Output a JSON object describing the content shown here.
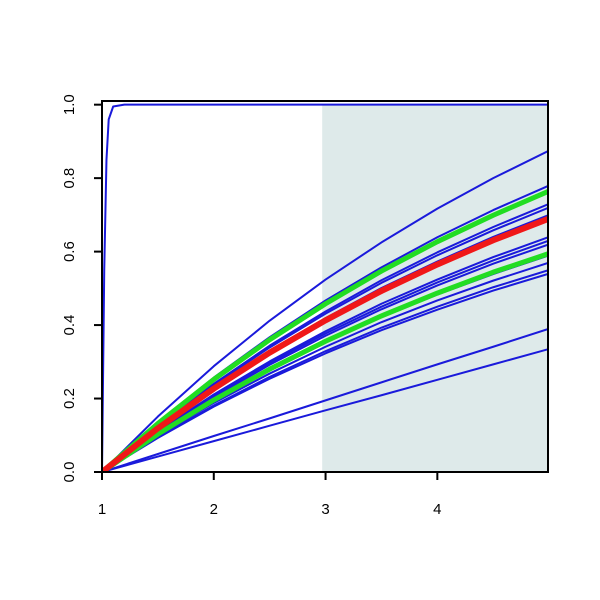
{
  "chart_data": {
    "type": "line",
    "xlim": [
      1,
      4.99
    ],
    "ylim": [
      0,
      1.01
    ],
    "xticks": [
      1,
      2,
      3,
      4
    ],
    "yticks": [
      {
        "value": 0,
        "label": "0.0"
      },
      {
        "value": 0.2,
        "label": "0.2"
      },
      {
        "value": 0.4,
        "label": "0.4"
      },
      {
        "value": 0.6,
        "label": "0.6"
      },
      {
        "value": 0.8,
        "label": "0.8"
      },
      {
        "value": 1,
        "label": "1.0"
      }
    ],
    "shade": {
      "x": [
        2.97,
        4.99
      ],
      "y": [
        0,
        1
      ],
      "color": "#deeaea"
    },
    "x": [
      1,
      1.5,
      2,
      2.5,
      3,
      3.5,
      4,
      4.5,
      5
    ],
    "series": [
      {
        "color": "#1a1adb",
        "width": 2,
        "values": [
          0,
          0.151,
          0.288,
          0.412,
          0.524,
          0.625,
          0.717,
          0.8,
          0.875
        ]
      },
      {
        "color": "#1a1adb",
        "width": 2,
        "values": [
          0,
          0.135,
          0.257,
          0.367,
          0.467,
          0.557,
          0.639,
          0.713,
          0.78
        ]
      },
      {
        "color": "#1a1adb",
        "width": 2,
        "values": [
          0,
          0.126,
          0.24,
          0.344,
          0.437,
          0.522,
          0.598,
          0.667,
          0.73
        ]
      },
      {
        "color": "#1a1adb",
        "width": 2,
        "values": [
          0,
          0.125,
          0.237,
          0.339,
          0.431,
          0.515,
          0.59,
          0.658,
          0.72
        ]
      },
      {
        "color": "#1a1adb",
        "width": 2,
        "values": [
          0,
          0.121,
          0.23,
          0.33,
          0.419,
          0.501,
          0.573,
          0.64,
          0.7
        ]
      },
      {
        "color": "#1a1adb",
        "width": 2,
        "values": [
          0,
          0.111,
          0.211,
          0.301,
          0.383,
          0.458,
          0.524,
          0.585,
          0.64
        ]
      },
      {
        "color": "#1a1adb",
        "width": 2,
        "values": [
          0,
          0.109,
          0.207,
          0.297,
          0.377,
          0.45,
          0.516,
          0.576,
          0.63
        ]
      },
      {
        "color": "#1a1adb",
        "width": 2,
        "values": [
          0,
          0.107,
          0.204,
          0.292,
          0.371,
          0.443,
          0.508,
          0.567,
          0.62
        ]
      },
      {
        "color": "#1a1adb",
        "width": 2,
        "values": [
          0,
          0.102,
          0.194,
          0.278,
          0.353,
          0.422,
          0.483,
          0.539,
          0.59
        ]
      },
      {
        "color": "#1a1adb",
        "width": 2,
        "values": [
          0,
          0.099,
          0.188,
          0.268,
          0.341,
          0.408,
          0.467,
          0.521,
          0.57
        ]
      },
      {
        "color": "#1a1adb",
        "width": 2,
        "values": [
          0,
          0.095,
          0.181,
          0.259,
          0.329,
          0.393,
          0.45,
          0.503,
          0.55
        ]
      },
      {
        "color": "#1a1adb",
        "width": 2,
        "values": [
          0,
          0.093,
          0.178,
          0.254,
          0.323,
          0.386,
          0.442,
          0.494,
          0.54
        ]
      },
      {
        "color": "#1a1adb",
        "width": 2,
        "values": [
          0,
          0.049,
          0.098,
          0.146,
          0.195,
          0.244,
          0.293,
          0.341,
          0.39
        ]
      },
      {
        "color": "#1a1adb",
        "width": 2,
        "values": [
          0,
          0.042,
          0.084,
          0.126,
          0.168,
          0.209,
          0.251,
          0.293,
          0.335
        ]
      },
      {
        "color": "#1a1adb",
        "width": 2,
        "x": [
          1,
          1.02,
          1.04,
          1.06,
          1.1,
          1.2,
          5
        ],
        "values": [
          0,
          0.55,
          0.85,
          0.96,
          0.995,
          1,
          1
        ]
      },
      {
        "color": "#22dd22",
        "width": 5,
        "values": [
          0,
          0.132,
          0.252,
          0.36,
          0.458,
          0.547,
          0.627,
          0.699,
          0.765
        ]
      },
      {
        "color": "#22dd22",
        "width": 5,
        "values": [
          0,
          0.103,
          0.196,
          0.28,
          0.356,
          0.425,
          0.487,
          0.544,
          0.595
        ]
      },
      {
        "color": "#f01818",
        "width": 6,
        "values": [
          0,
          0.119,
          0.227,
          0.325,
          0.413,
          0.493,
          0.565,
          0.631,
          0.69
        ]
      }
    ]
  }
}
